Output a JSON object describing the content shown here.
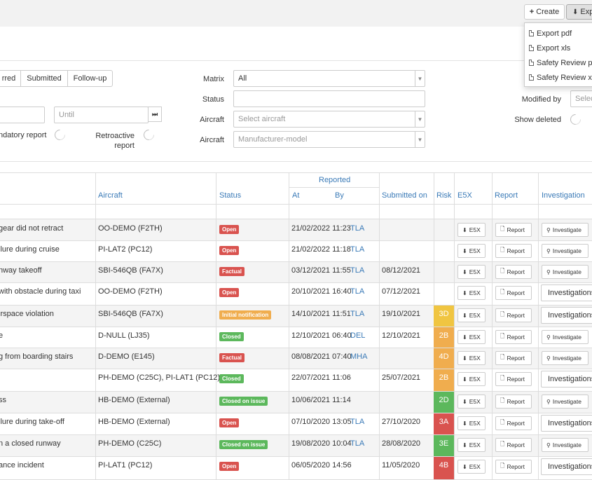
{
  "toolbar": {
    "create_label": "Create",
    "export_label": "Exp"
  },
  "export_menu": [
    {
      "label": "Export pdf"
    },
    {
      "label": "Export xls"
    },
    {
      "label": "Safety Review pdf"
    },
    {
      "label": "Safety Review xls"
    }
  ],
  "filters": {
    "status_tabs": [
      "rred",
      "Submitted",
      "Follow-up"
    ],
    "until_placeholder": "Until",
    "mandatory_label": "ndatory report",
    "retroactive_label": "Retroactive report",
    "retroactive_line1": "Retroactive",
    "retroactive_line2": "report",
    "matrix_label": "Matrix",
    "matrix_value": "All",
    "status_label": "Status",
    "aircraft_label": "Aircraft",
    "aircraft_placeholder": "Select aircraft",
    "aircraft2_label": "Aircraft",
    "aircraft2_placeholder": "Manufacturer-model",
    "modified_by_label": "Modified by",
    "modified_by_placeholder": "Select",
    "show_deleted_label": "Show deleted"
  },
  "table": {
    "headers": {
      "aircraft": "Aircraft",
      "status": "Status",
      "reported": "Reported",
      "at": "At",
      "by": "By",
      "submitted_on": "Submitted on",
      "risk": "Risk",
      "e5x": "E5X",
      "report": "Report",
      "investigation": "Investigation"
    },
    "button_labels": {
      "e5x": "E5X",
      "report": "Report",
      "investigate": "Investigate",
      "investigations": "Investigations"
    },
    "status_colors": {
      "Open": "#d9534f",
      "Factual": "#d9534f",
      "Initial notification": "#f0ad4e",
      "Closed": "#5cb85c",
      "Closed on issue": "#5cb85c"
    },
    "risk_colors": {
      "3D": "#f0c541",
      "2B": "#f0ad4e",
      "4D": "#f0ad4e",
      "2D": "#5cb85c",
      "3A": "#d9534f",
      "3E": "#5cb85c",
      "4B": "#d9534f"
    },
    "rows": [
      {
        "title": "gear did not retract",
        "aircraft": "OO-DEMO (F2TH)",
        "status": "Open",
        "at": "21/02/2022 11:23",
        "by": "TLA",
        "submitted": "",
        "risk": "",
        "investigation": "Investigate"
      },
      {
        "title": "ilure during cruise",
        "aircraft": "PI-LAT2 (PC12)",
        "status": "Open",
        "at": "21/02/2022 11:18",
        "by": "TLA",
        "submitted": "",
        "risk": "",
        "investigation": "Investigate"
      },
      {
        "title": "nway takeoff",
        "aircraft": "SBI-546QB (FA7X)",
        "status": "Factual",
        "at": "03/12/2021 11:55",
        "by": "TLA",
        "submitted": "08/12/2021",
        "risk": "",
        "investigation": "Investigate"
      },
      {
        "title": "with obstacle during taxi",
        "aircraft": "OO-DEMO (F2TH)",
        "status": "Open",
        "at": "20/10/2021 16:40",
        "by": "TLA",
        "submitted": "07/12/2021",
        "risk": "",
        "investigation": "Investigations"
      },
      {
        "title": "irspace violation",
        "aircraft": "SBI-546QB (FA7X)",
        "status": "Initial notification",
        "at": "14/10/2021 11:51",
        "by": "TLA",
        "submitted": "19/10/2021",
        "risk": "3D",
        "investigation": "Investigations"
      },
      {
        "title": "e",
        "aircraft": "D-NULL (LJ35)",
        "status": "Closed",
        "at": "12/10/2021 06:40",
        "by": "DEL",
        "submitted": "12/10/2021",
        "risk": "2B",
        "investigation": "Investigate"
      },
      {
        "title": "g from boarding stairs",
        "aircraft": "D-DEMO (E145)",
        "status": "Factual",
        "at": "08/08/2021 07:40",
        "by": "MHA",
        "submitted": "",
        "risk": "4D",
        "investigation": "Investigate"
      },
      {
        "title": "",
        "aircraft": "PH-DEMO (C25C), PI-LAT1 (PC12)",
        "status": "Closed",
        "at": "22/07/2021 11:06",
        "by": "",
        "submitted": "25/07/2021",
        "risk": "2B",
        "investigation": "Investigations"
      },
      {
        "title": "ss",
        "aircraft": "HB-DEMO (External)",
        "status": "Closed on issue",
        "at": "10/06/2021 11:14",
        "by": "",
        "submitted": "",
        "risk": "2D",
        "investigation": "Investigate"
      },
      {
        "title": "ilure during take-off",
        "aircraft": "HB-DEMO (External)",
        "status": "Open",
        "at": "07/10/2020 13:05",
        "by": "TLA",
        "submitted": "27/10/2020",
        "risk": "3A",
        "investigation": "Investigations"
      },
      {
        "title": "n a closed runway",
        "aircraft": "PH-DEMO (C25C)",
        "status": "Closed on issue",
        "at": "19/08/2020 10:04",
        "by": "TLA",
        "submitted": "28/08/2020",
        "risk": "3E",
        "investigation": "Investigate"
      },
      {
        "title": "ance incident",
        "aircraft": "PI-LAT1 (PC12)",
        "status": "Open",
        "at": "06/05/2020 14:56",
        "by": "",
        "submitted": "11/05/2020",
        "risk": "4B",
        "investigation": "Investigations"
      }
    ]
  }
}
